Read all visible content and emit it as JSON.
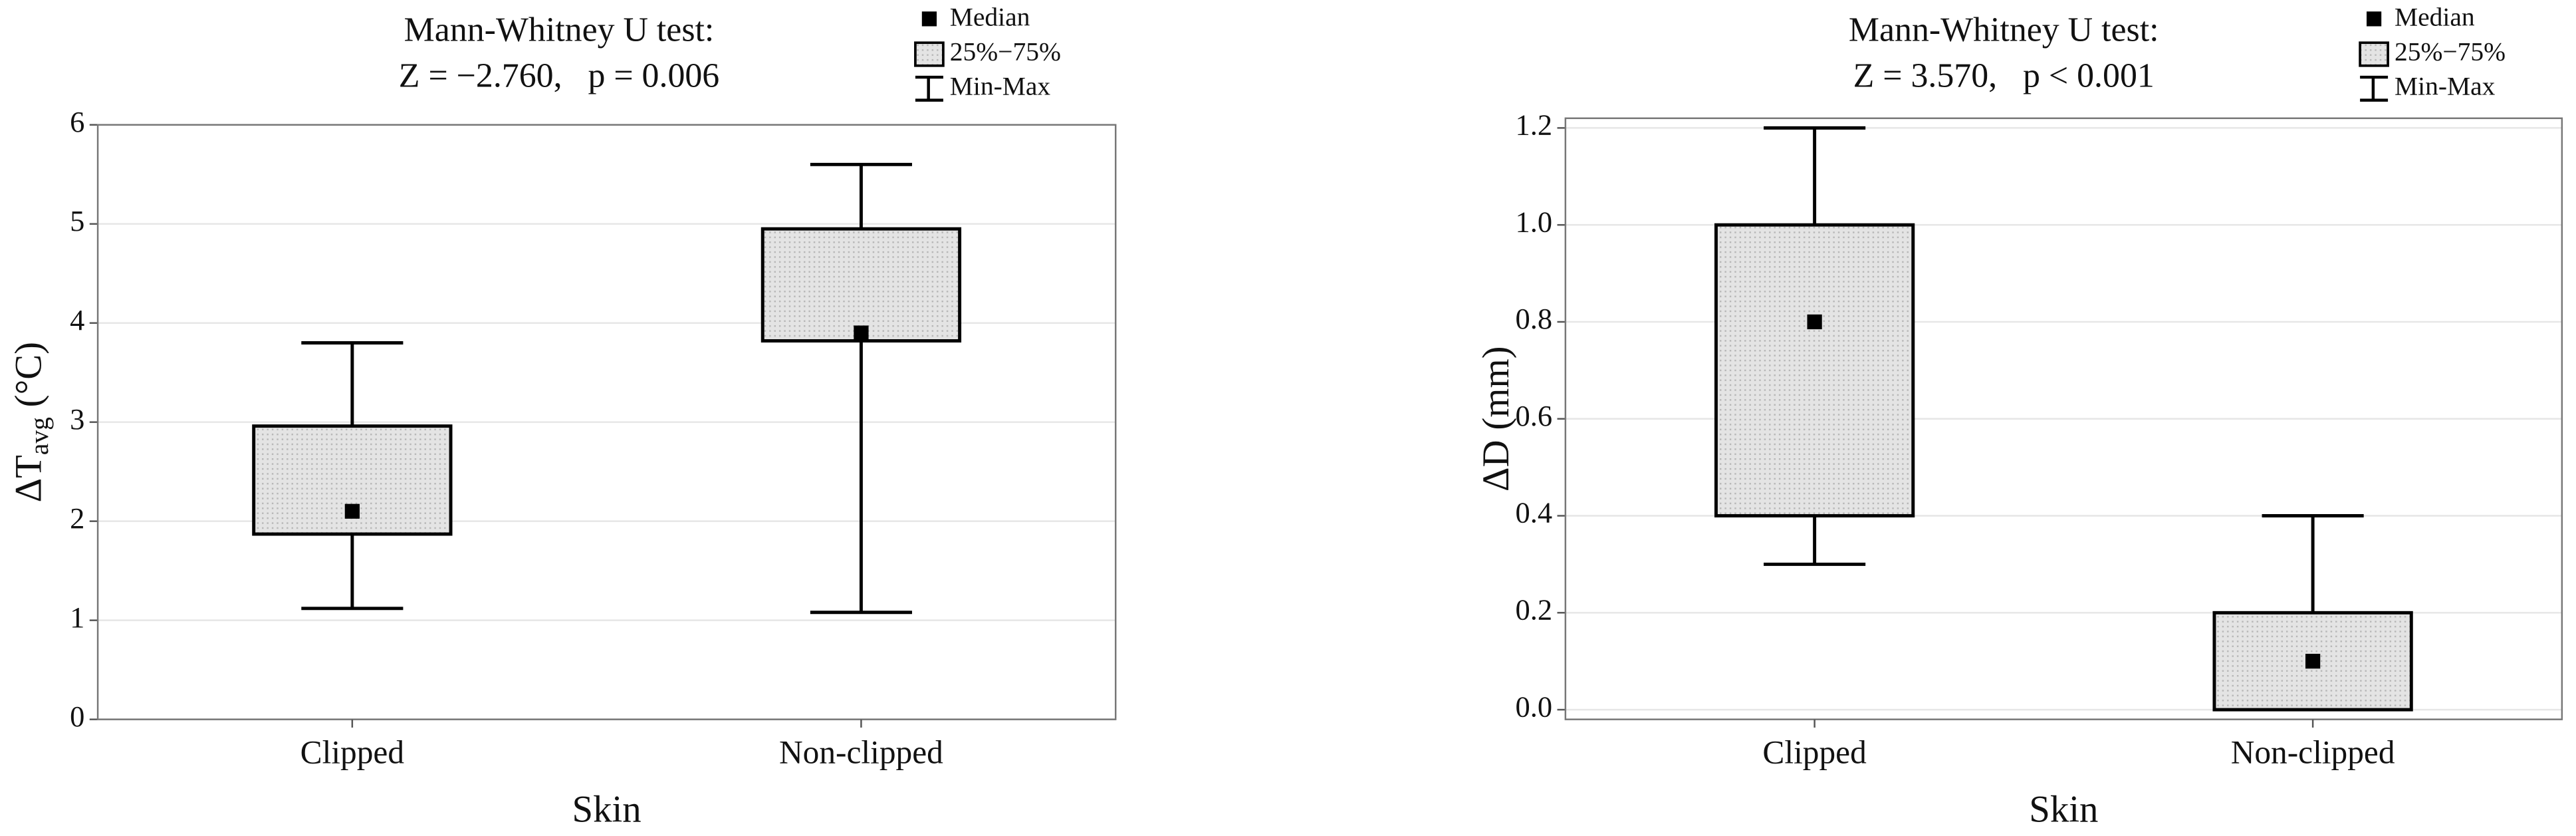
{
  "chart_data": [
    {
      "type": "box",
      "title": "Mann-Whitney U test:",
      "subtitle": "Z = −2.760,   p = 0.006",
      "y_label": {
        "main": "ΔT",
        "subscript": "avg",
        "unit": "(°C)"
      },
      "x_label": "Skin",
      "categories": [
        "Clipped",
        "Non-clipped"
      ],
      "boxes": [
        {
          "min": 1.12,
          "q1": 1.87,
          "median": 2.1,
          "q3": 2.96,
          "max": 3.8
        },
        {
          "min": 1.08,
          "q1": 3.82,
          "median": 3.9,
          "q3": 4.95,
          "max": 5.6
        }
      ],
      "box_color": "#e4e4e4",
      "median_color": "#000000",
      "legend": {
        "median": "Median",
        "box": "25%−75%",
        "whisker": "Min-Max"
      },
      "ylim": [
        0,
        6
      ],
      "yticks": [
        0,
        1,
        2,
        3,
        4,
        5,
        6
      ],
      "grid": true
    },
    {
      "type": "box",
      "title": "Mann-Whitney U test:",
      "subtitle": "Z = 3.570,   p < 0.001",
      "y_label": {
        "main": "ΔD",
        "unit": "(mm)"
      },
      "x_label": "Skin",
      "categories": [
        "Clipped",
        "Non-clipped"
      ],
      "boxes": [
        {
          "min": 0.3,
          "q1": 0.4,
          "median": 0.8,
          "q3": 1.0,
          "max": 1.2
        },
        {
          "min": 0.0,
          "q1": 0.0,
          "median": 0.1,
          "q3": 0.2,
          "max": 0.4
        }
      ],
      "box_color": "#e4e4e4",
      "median_color": "#000000",
      "legend": {
        "median": "Median",
        "box": "25%−75%",
        "whisker": "Min-Max"
      },
      "ylim": [
        -0.02,
        1.22
      ],
      "yticks": [
        {
          "value": 0,
          "label": "0.0"
        },
        0.2,
        0.4,
        0.6,
        0.8,
        {
          "value": 1,
          "label": "1.0"
        },
        1.2
      ],
      "grid": true
    }
  ]
}
